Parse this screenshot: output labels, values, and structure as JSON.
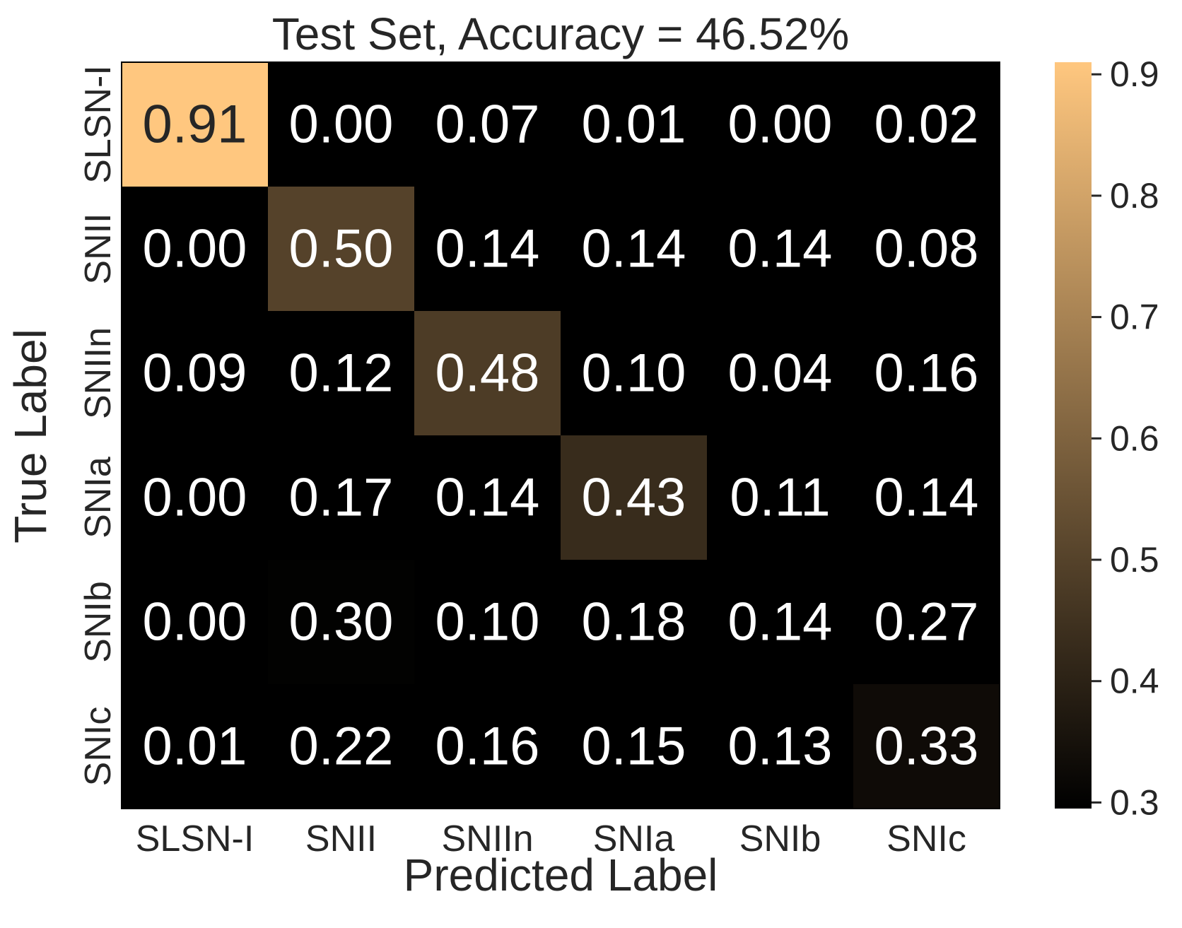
{
  "chart_data": {
    "type": "heatmap",
    "title": "Test Set, Accuracy = 46.52%",
    "xlabel": "Predicted Label",
    "ylabel": "True Label",
    "x_categories": [
      "SLSN-I",
      "SNII",
      "SNIIn",
      "SNIa",
      "SNIb",
      "SNIc"
    ],
    "y_categories": [
      "SLSN-I",
      "SNII",
      "SNIIn",
      "SNIa",
      "SNIb",
      "SNIc"
    ],
    "values": [
      [
        0.91,
        0.0,
        0.07,
        0.01,
        0.0,
        0.02
      ],
      [
        0.0,
        0.5,
        0.14,
        0.14,
        0.14,
        0.08
      ],
      [
        0.09,
        0.12,
        0.48,
        0.1,
        0.04,
        0.16
      ],
      [
        0.0,
        0.17,
        0.14,
        0.43,
        0.11,
        0.14
      ],
      [
        0.0,
        0.3,
        0.1,
        0.18,
        0.14,
        0.27
      ],
      [
        0.01,
        0.22,
        0.16,
        0.15,
        0.13,
        0.33
      ]
    ],
    "colorbar": {
      "colormap": "copper",
      "vmin": 0.295,
      "vmax": 0.91,
      "ticks": [
        "0.3",
        "0.4",
        "0.5",
        "0.6",
        "0.7",
        "0.8",
        "0.9"
      ],
      "colors": [
        "#000000",
        "#ffc77f"
      ]
    },
    "value_format": "2 decimals",
    "annotation_colors": {
      "light_cell": "#262626",
      "dark_cell": "#ffffff"
    }
  }
}
